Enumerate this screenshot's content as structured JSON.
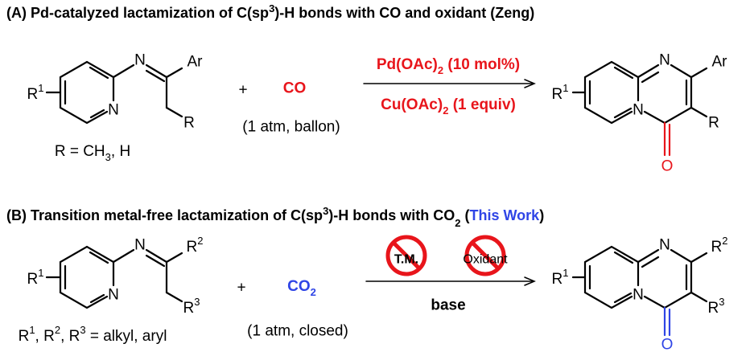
{
  "scheme_a": {
    "title": [
      "(A) Pd-catalyzed lactamization of C(sp",
      "3",
      ")-H bonds with CO and oxidant (Zeng)"
    ],
    "reactant": {
      "substituent": [
        "R",
        "1"
      ],
      "imine_n": "N",
      "ring_n": "N",
      "aryl": "Ar",
      "alkyl": "R",
      "note": [
        "R = CH",
        "3",
        ", H"
      ]
    },
    "plus": "+",
    "reagent": "CO",
    "reagent_note": "(1 atm, ballon)",
    "catalyst": [
      "Pd(OAc)",
      "2",
      " (10 mol%)"
    ],
    "oxidant": [
      "Cu(OAc)",
      "2",
      " (1 equiv)"
    ],
    "product": {
      "substituent": [
        "R",
        "1"
      ],
      "ring_n": "N",
      "bridge_n": "N",
      "aryl": "Ar",
      "alkyl": "R",
      "oxygen": "O"
    }
  },
  "scheme_b": {
    "title": [
      "(B) Transition metal-free lactamization of C(sp",
      "3",
      ")-H bonds with CO",
      "2",
      " (",
      "This Work",
      ")"
    ],
    "reactant": {
      "substituent": [
        "R",
        "1"
      ],
      "imine_n": "N",
      "ring_n": "N",
      "group_2": [
        "R",
        "2"
      ],
      "group_3": [
        "R",
        "3"
      ],
      "note": [
        "R",
        "1",
        ", R",
        "2",
        ", R",
        "3",
        " = alkyl, aryl"
      ]
    },
    "plus": "+",
    "reagent": [
      "CO",
      "2"
    ],
    "reagent_note": "(1 atm, closed)",
    "excluded": [
      "T.M.",
      "Oxidant"
    ],
    "base": "base",
    "product": {
      "substituent": [
        "R",
        "1"
      ],
      "ring_n": "N",
      "bridge_n": "N",
      "group_2": [
        "R",
        "2"
      ],
      "group_3": [
        "R",
        "3"
      ],
      "oxygen": "O"
    }
  }
}
